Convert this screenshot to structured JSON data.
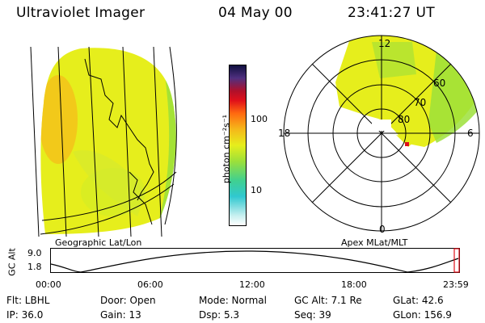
{
  "header": {
    "instrument": "Ultraviolet Imager",
    "date": "04 May 00",
    "time": "23:41:27 UT"
  },
  "colorbar": {
    "unit_label": "photon cm⁻²s⁻¹",
    "ticks": [
      "100",
      "10"
    ]
  },
  "panels": {
    "left_label": "Geographic Lat/Lon",
    "right_label": "Apex MLat/MLT"
  },
  "polar": {
    "mlt_labels": {
      "top": "12",
      "left": "18",
      "right": "6",
      "bottom": "0"
    },
    "mlat_labels": [
      "60",
      "70",
      "80"
    ]
  },
  "gc_alt_plot": {
    "ylabel": "GC Alt",
    "yticks": [
      "9.0",
      "1.8"
    ],
    "xticks": [
      "00:00",
      "06:00",
      "12:00",
      "18:00",
      "23:59"
    ]
  },
  "info_rows": [
    {
      "flt": "Flt: LBHL",
      "door": "Door: Open",
      "mode": "Mode: Normal",
      "gc_alt": "GC Alt: 7.1 Re",
      "glat": "GLat:  42.6"
    },
    {
      "ip": "IP: 36.0",
      "gain": "Gain: 13",
      "dsp": "Dsp:    5.3",
      "seq": "Seq: 39",
      "glon": "GLon: 156.9"
    }
  ],
  "colors": {
    "image_fill": "#e6ee1c",
    "image_warm": "#f3c21a",
    "image_green": "#9ce03a",
    "grid": "#000000"
  }
}
